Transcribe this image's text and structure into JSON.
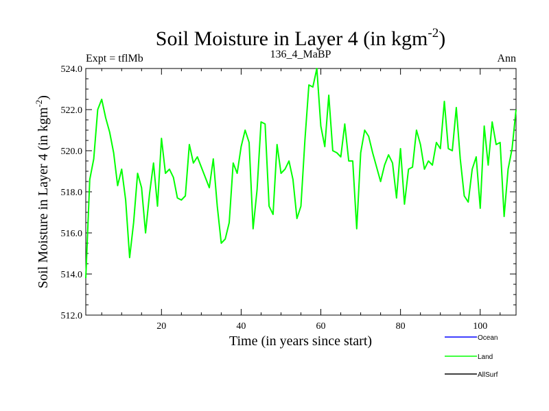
{
  "chart_data": {
    "type": "line",
    "title": "Soil Moisture in Layer 4 (in kgm",
    "title_sup": "-2",
    "title_close": ")",
    "subtitle_left": "Expt = tflMb",
    "subtitle_center": "136_4_MaBP",
    "subtitle_right": "Ann",
    "xlabel": "Time (in years since start)",
    "ylabel": "Soil Moisture in Layer 4 (in kgm",
    "ylabel_sup": "-2",
    "ylabel_close": ")",
    "xlim": [
      1,
      109
    ],
    "ylim": [
      512,
      524
    ],
    "x_ticks": [
      20,
      40,
      60,
      80,
      100
    ],
    "x_tick_labels": [
      "20",
      "40",
      "60",
      "80",
      "100"
    ],
    "y_ticks": [
      512,
      514,
      516,
      518,
      520,
      522,
      524
    ],
    "y_tick_labels": [
      "512.0",
      "514.0",
      "516.0",
      "518.0",
      "520.0",
      "522.0",
      "524.0"
    ],
    "series": [
      {
        "name": "Land",
        "color": "#00ff00",
        "x": [
          1,
          2,
          3,
          4,
          5,
          6,
          7,
          8,
          9,
          10,
          11,
          12,
          13,
          14,
          15,
          16,
          17,
          18,
          19,
          20,
          21,
          22,
          23,
          24,
          25,
          26,
          27,
          28,
          29,
          30,
          31,
          32,
          33,
          34,
          35,
          36,
          37,
          38,
          39,
          40,
          41,
          42,
          43,
          44,
          45,
          46,
          47,
          48,
          49,
          50,
          51,
          52,
          53,
          54,
          55,
          56,
          57,
          58,
          59,
          60,
          61,
          62,
          63,
          64,
          65,
          66,
          67,
          68,
          69,
          70,
          71,
          72,
          73,
          74,
          75,
          76,
          77,
          78,
          79,
          80,
          81,
          82,
          83,
          84,
          85,
          86,
          87,
          88,
          89,
          90,
          91,
          92,
          93,
          94,
          95,
          96,
          97,
          98,
          99,
          100,
          101,
          102,
          103,
          104,
          105,
          106,
          107,
          108,
          109
        ],
        "values": [
          513.8,
          518.6,
          519.6,
          522.0,
          522.5,
          521.6,
          520.9,
          519.9,
          518.3,
          519.1,
          517.6,
          514.8,
          516.5,
          518.9,
          518.2,
          516.0,
          517.9,
          519.4,
          517.3,
          520.6,
          518.9,
          519.1,
          518.7,
          517.7,
          517.6,
          517.8,
          520.3,
          519.4,
          519.7,
          519.2,
          518.7,
          518.2,
          519.6,
          517.3,
          515.5,
          515.7,
          516.5,
          519.4,
          518.9,
          520.2,
          521.0,
          520.4,
          516.2,
          518.1,
          521.4,
          521.3,
          517.3,
          516.9,
          520.3,
          518.9,
          519.1,
          519.5,
          518.6,
          516.7,
          517.3,
          520.5,
          523.2,
          523.1,
          524.0,
          521.2,
          520.2,
          522.7,
          520.0,
          519.9,
          519.7,
          521.3,
          519.5,
          519.5,
          516.2,
          519.9,
          521.0,
          520.7,
          519.9,
          519.2,
          518.5,
          519.3,
          519.8,
          519.4,
          517.7,
          520.1,
          517.4,
          519.1,
          519.2,
          521.0,
          520.3,
          519.1,
          519.5,
          519.3,
          520.4,
          520.1,
          522.4,
          520.1,
          520.0,
          522.1,
          519.6,
          517.8,
          517.5,
          519.1,
          519.7,
          517.2,
          521.2,
          519.3,
          521.4,
          520.3,
          520.4,
          516.8,
          519.1,
          520.1,
          522.0
        ]
      }
    ],
    "legend": {
      "placement": "below-right",
      "entries": [
        {
          "label": "Ocean",
          "color": "#0000ff"
        },
        {
          "label": "Land",
          "color": "#00ff00"
        },
        {
          "label": "AllSurf",
          "color": "#000000"
        }
      ]
    }
  }
}
